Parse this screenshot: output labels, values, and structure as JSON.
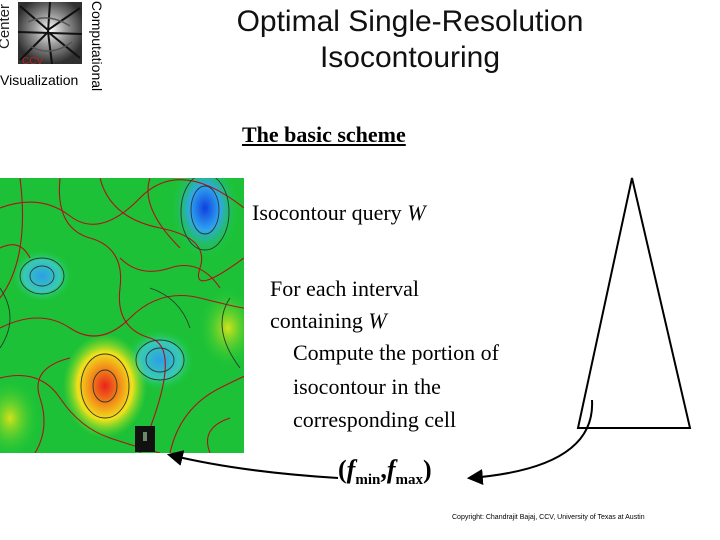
{
  "logo": {
    "word_center": "Center",
    "word_computational": "Computational",
    "word_visualization": "Visualization",
    "word_ccv": "CCV",
    "icon": "ccv-logo-icon"
  },
  "slide": {
    "title_line1": "Optimal Single-Resolution",
    "title_line2": "Isocontouring",
    "subtitle": "The basic scheme",
    "line1_text": "Isocontour query ",
    "line1_var": "W",
    "line2_text": "For each interval",
    "line3_text": "containing ",
    "line3_var": "W",
    "line4_text": "Compute the portion of",
    "line5_text": "isocontour in the",
    "line6_text": "corresponding cell",
    "f_open": "(",
    "f1": "f",
    "f1_sub": "min",
    "comma": ",",
    "f2": "f",
    "f2_sub": "max",
    "f_close": ")",
    "copyright": "Copyright: Chandrajit Bajaj, CCV, University of Texas at Austin"
  },
  "colors": {
    "field_green": "#1ecc3a",
    "field_blue": "#1c6fe0",
    "field_red": "#e8231a",
    "field_yellow": "#f2e21a",
    "contour_red": "#b0121a",
    "contour_dark": "#2b3a2b"
  }
}
